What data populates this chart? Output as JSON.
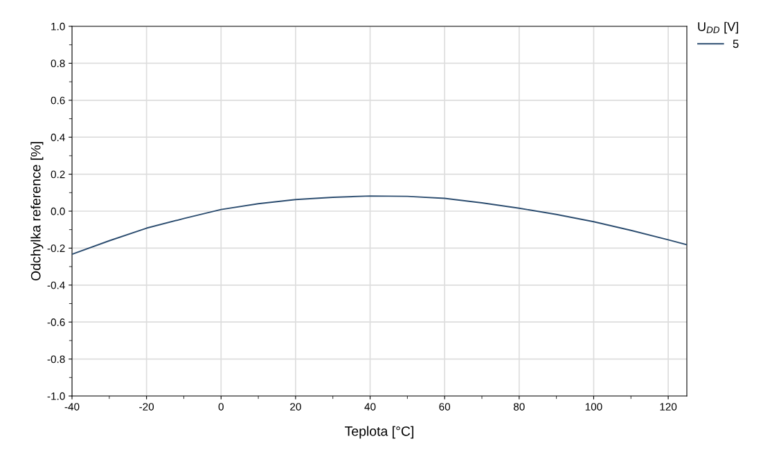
{
  "chart_data": {
    "type": "line",
    "xlabel": "Teplota [°C]",
    "ylabel": "Odchylka reference [%]",
    "legend_title": "U$_{DD}$ [V]",
    "x": [
      -40,
      -30,
      -20,
      -10,
      0,
      10,
      20,
      30,
      40,
      50,
      60,
      70,
      80,
      90,
      100,
      110,
      120,
      125
    ],
    "series": [
      {
        "name": "5",
        "color": "#2b4c6f",
        "values": [
          -0.233,
          -0.16,
          -0.092,
          -0.04,
          0.009,
          0.04,
          0.063,
          0.075,
          0.082,
          0.08,
          0.069,
          0.045,
          0.016,
          -0.018,
          -0.057,
          -0.104,
          -0.155,
          -0.182
        ]
      }
    ],
    "xlim": [
      -40,
      125
    ],
    "xticks": [
      -40,
      -20,
      0,
      20,
      40,
      60,
      80,
      100,
      120
    ],
    "ylim": [
      -1.0,
      1.0
    ],
    "yticks": [
      {
        "value": -1.0,
        "label": "-1.0"
      },
      {
        "value": -0.8,
        "label": "-0.8"
      },
      {
        "value": -0.6,
        "label": "-0.6"
      },
      {
        "value": -0.4,
        "label": "-0.4"
      },
      {
        "value": -0.2,
        "label": "-0.2"
      },
      {
        "value": 0.0,
        "label": "0.0"
      },
      {
        "value": 0.2,
        "label": "0.2"
      },
      {
        "value": 0.4,
        "label": "0.4"
      },
      {
        "value": 0.6,
        "label": "0.6"
      },
      {
        "value": 0.8,
        "label": "0.8"
      },
      {
        "value": 1.0,
        "label": "1.0"
      }
    ],
    "grid": true,
    "legend": "top right",
    "marker": "none",
    "line_style": "solid"
  }
}
